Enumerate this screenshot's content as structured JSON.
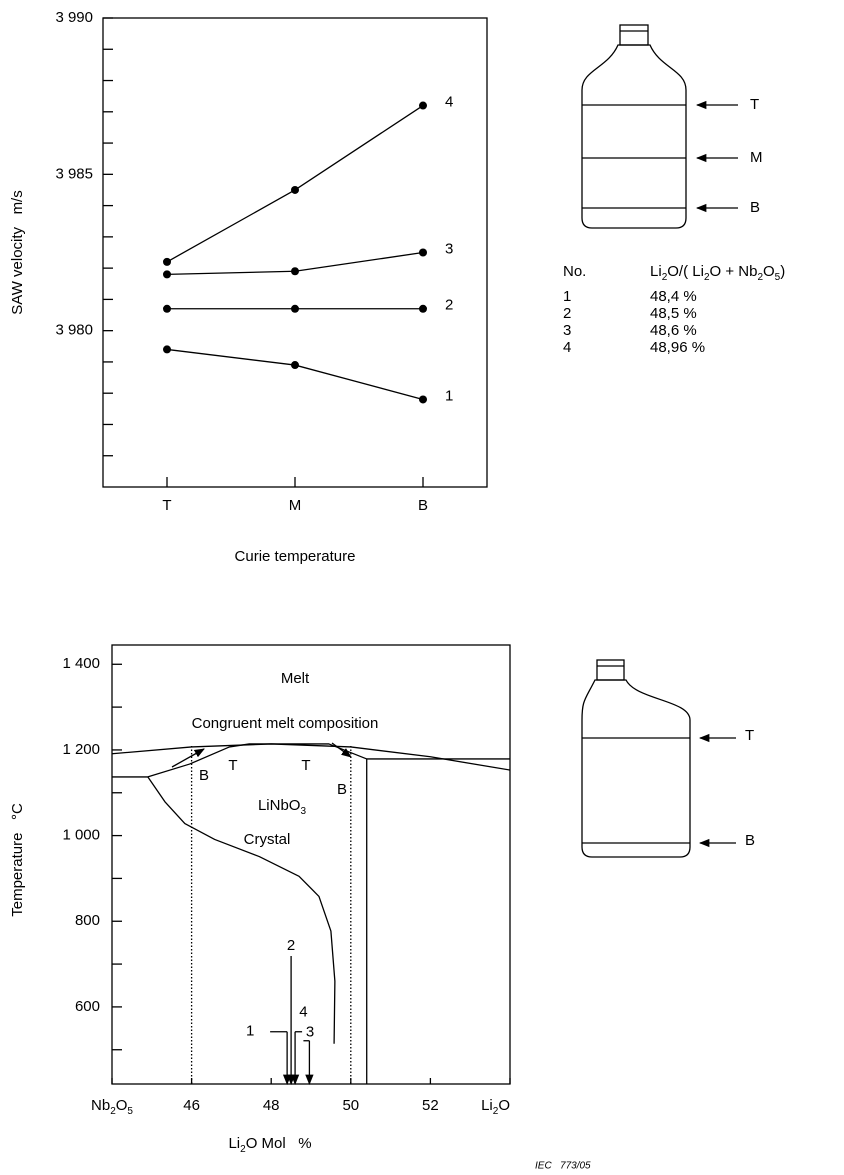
{
  "chart_data": [
    {
      "type": "line",
      "x_label": "Curie temperature",
      "y_label": "SAW velocity   m/s",
      "categories": [
        "T",
        "M",
        "B"
      ],
      "ylim": [
        3975,
        3990
      ],
      "yticks": [
        {
          "value": 3980,
          "label": "3 980"
        },
        {
          "value": 3985,
          "label": "3 985"
        },
        {
          "value": 3990,
          "label": "3 990"
        }
      ],
      "yminorticks": [
        3976,
        3977,
        3978,
        3979,
        3981,
        3982,
        3983,
        3984,
        3986,
        3987,
        3988,
        3989
      ],
      "color": "#000000",
      "series": [
        {
          "name": "1",
          "values": [
            3979.4,
            3978.9,
            3977.8
          ]
        },
        {
          "name": "2",
          "values": [
            3980.7,
            3980.7,
            3980.7
          ]
        },
        {
          "name": "3",
          "values": [
            3981.8,
            3981.9,
            3982.5
          ]
        },
        {
          "name": "4",
          "values": [
            3982.2,
            3984.5,
            3987.2
          ]
        }
      ]
    },
    {
      "type": "phase",
      "x_label": "Li2O Mol   %",
      "y_label": "Temperature   °C",
      "xlim": [
        44,
        54
      ],
      "ylim": [
        420,
        1445
      ],
      "xticks": [
        {
          "value": 44,
          "label": "Nb2O5"
        },
        46,
        48,
        50,
        52,
        {
          "value": 54,
          "label": "Li2O"
        }
      ],
      "yticks": [
        {
          "value": 600,
          "label": "600"
        },
        {
          "value": 800,
          "label": "800"
        },
        {
          "value": 1000,
          "label": "1 000"
        },
        {
          "value": 1200,
          "label": "1 200"
        },
        {
          "value": 1400,
          "label": "1 400"
        }
      ],
      "yminorticks": [
        500,
        700,
        900,
        1100,
        1300
      ],
      "color": "#000000",
      "curves": [
        {
          "x": [
            44,
            46,
            48,
            50,
            52,
            54
          ],
          "y": [
            1191,
            1207,
            1214,
            1207,
            1184,
            1153
          ]
        },
        {
          "x": [
            44,
            44.9,
            45.95,
            46.95,
            47.45,
            49.45,
            49.83,
            50.4,
            54
          ],
          "y": [
            1137,
            1137,
            1167,
            1207,
            1214,
            1214,
            1200,
            1179,
            1179
          ]
        },
        {
          "x": [
            44.9,
            45.33,
            45.83,
            46.58,
            47.7,
            48.7,
            49.2,
            49.5,
            49.6,
            49.58
          ],
          "y": [
            1137,
            1079,
            1028,
            991,
            951,
            905,
            858,
            777,
            660,
            514
          ]
        },
        {
          "x": [
            50.4,
            50.4
          ],
          "y": [
            1179,
            420
          ]
        }
      ],
      "reference_lines": [
        46,
        50
      ],
      "composition_markers": [
        {
          "name": "1",
          "x": 48.4,
          "y": 542
        },
        {
          "name": "2",
          "x": 48.5,
          "y": 719
        },
        {
          "name": "3",
          "x": 48.6,
          "y": 542
        },
        {
          "name": "4",
          "x": 48.96,
          "y": 521
        }
      ],
      "annotations": [
        "Melt",
        "Congruent melt composition",
        "B",
        "T",
        "T",
        "B",
        "LiNbO3",
        "Crystal"
      ]
    }
  ],
  "composition_table": {
    "header": [
      "No.",
      "Li2O/( Li2O + Nb2O5)"
    ],
    "rows": [
      [
        "1",
        "48,4 %"
      ],
      [
        "2",
        "48,5 %"
      ],
      [
        "3",
        "48,6 %"
      ],
      [
        "4",
        "48,96 %"
      ]
    ]
  },
  "bottles": [
    {
      "labels": [
        "T",
        "M",
        "B"
      ]
    },
    {
      "labels": [
        "T",
        "B"
      ]
    }
  ],
  "footer": "IEC   773/05"
}
